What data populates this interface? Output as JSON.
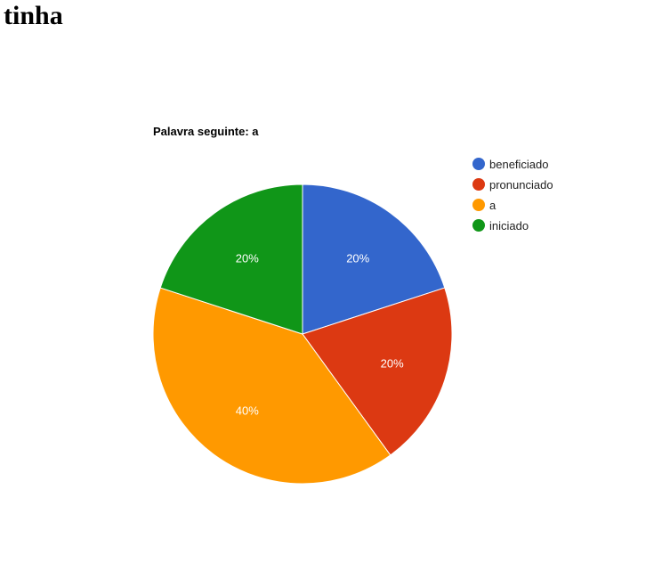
{
  "page": {
    "heading": "tinha"
  },
  "chart_data": {
    "type": "pie",
    "title": "Palavra seguinte: a",
    "slices": [
      {
        "label": "beneficiado",
        "value": 20,
        "display": "20%",
        "color": "#3366cc"
      },
      {
        "label": "pronunciado",
        "value": 20,
        "display": "20%",
        "color": "#dc3912"
      },
      {
        "label": "a",
        "value": 40,
        "display": "40%",
        "color": "#ff9900"
      },
      {
        "label": "iniciado",
        "value": 20,
        "display": "20%",
        "color": "#109618"
      }
    ],
    "legend_position": "right",
    "start_angle": "12 o'clock",
    "direction": "clockwise"
  }
}
